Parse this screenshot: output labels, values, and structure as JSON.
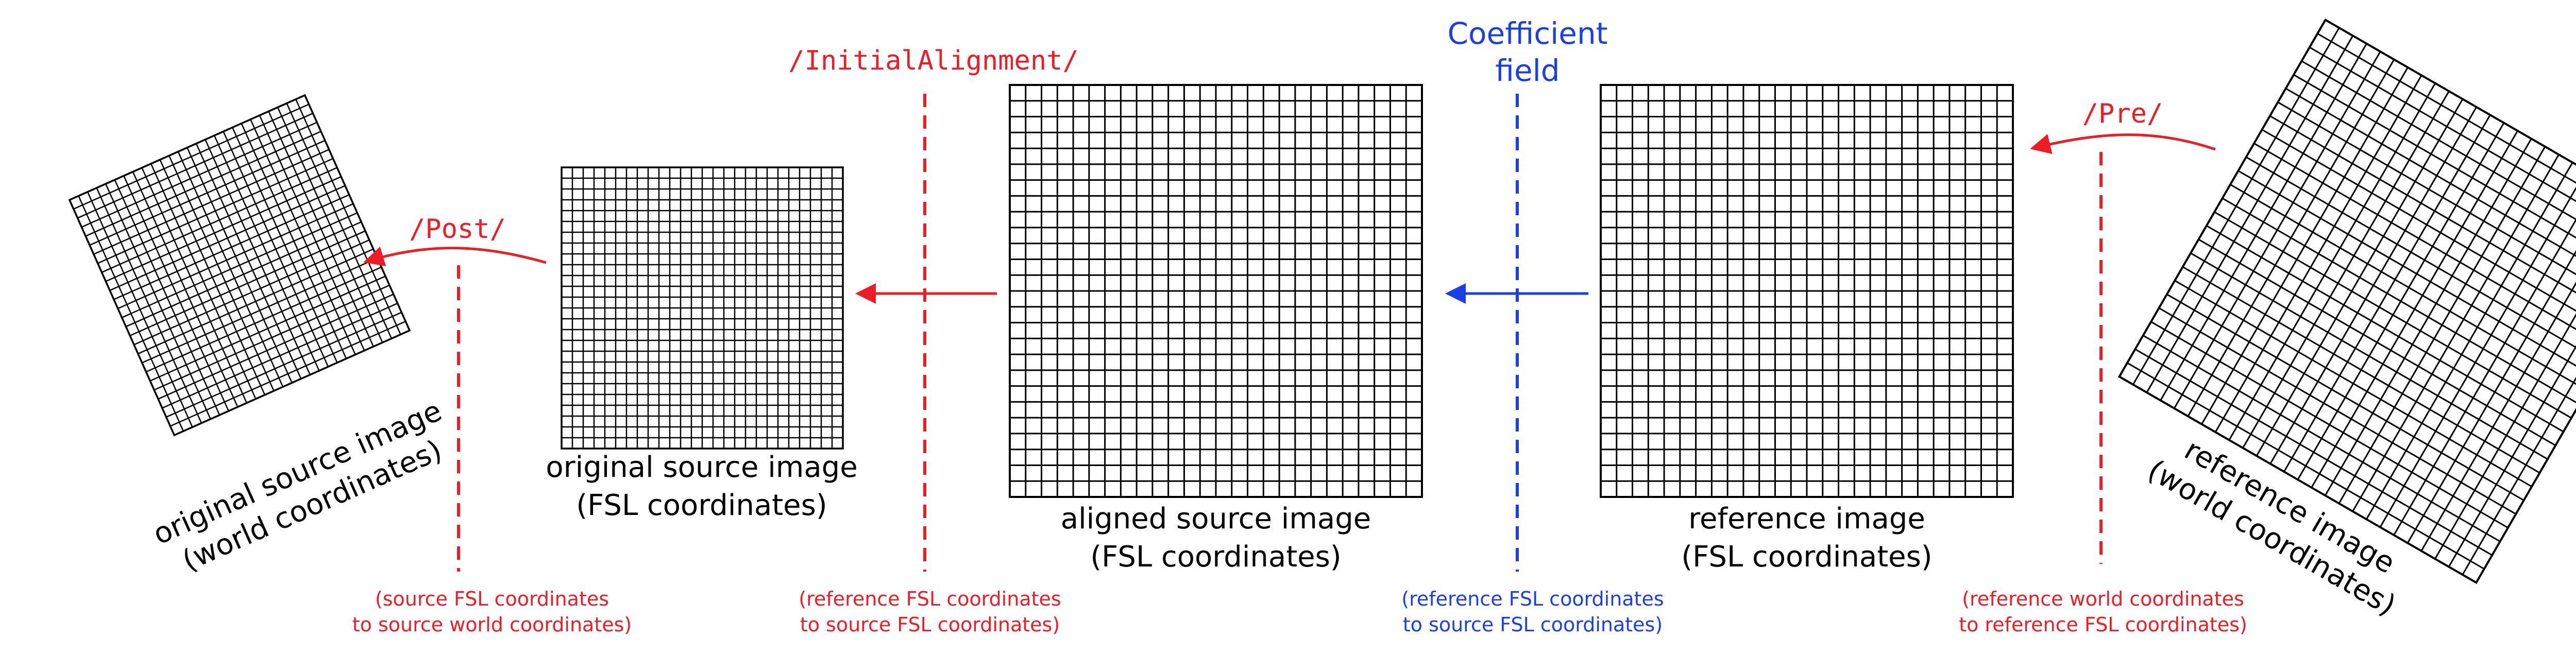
{
  "colors": {
    "red": "#ee1c24",
    "blue": "#1b3fe6",
    "black": "#000000"
  },
  "grid_cells": 26,
  "images": {
    "original_world": {
      "line1": "original source image",
      "line2": "(world coordinates)"
    },
    "original_fsl": {
      "line1": "original source image",
      "line2": "(FSL coordinates)"
    },
    "aligned_fsl": {
      "line1": "aligned source image",
      "line2": "(FSL coordinates)"
    },
    "reference_fsl": {
      "line1": "reference image",
      "line2": "(FSL coordinates)"
    },
    "reference_world": {
      "line1": "reference image",
      "line2": "(world coordinates)"
    }
  },
  "transforms": {
    "post": {
      "label": "/Post/",
      "desc1": "(source FSL coordinates",
      "desc2": "to source world coordinates)"
    },
    "initial": {
      "label": "/InitialAlignment/",
      "desc1": "(reference FSL coordinates",
      "desc2": "to source FSL coordinates)"
    },
    "coef": {
      "label1": "Coefficient",
      "label2": "field",
      "desc1": "(reference FSL coordinates",
      "desc2": "to source FSL coordinates)"
    },
    "pre": {
      "label": "/Pre/",
      "desc1": "(reference world coordinates",
      "desc2": "to reference FSL coordinates)"
    }
  }
}
